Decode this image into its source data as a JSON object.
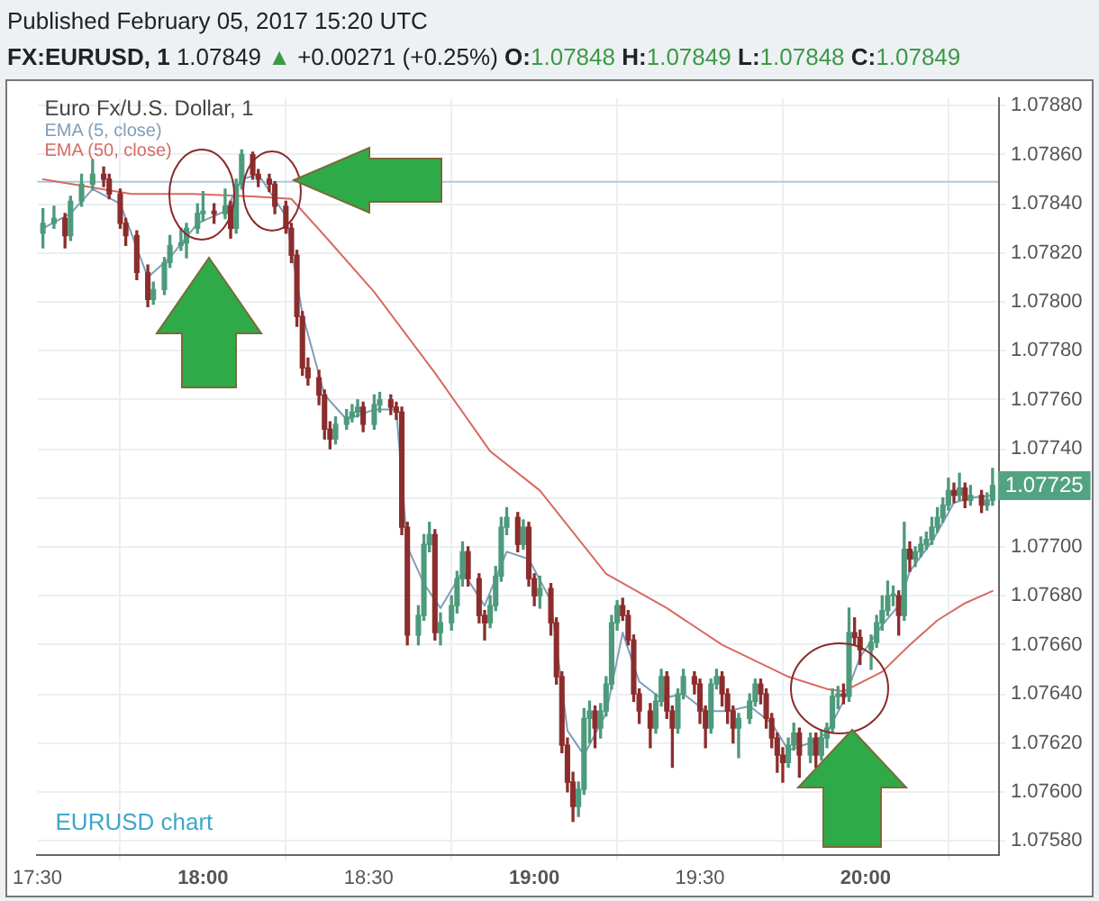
{
  "chart_data": {
    "type": "candlestick",
    "title": "Euro Fx/U.S. Dollar, 1",
    "subtitle": "FX:EURUSD, 1 1.07849 ▲ +0.00271 (+0.25%) O:1.07848 H:1.07849 L:1.07848 C:1.07849",
    "annotations": [
      "Published February 05, 2017 15:20 UTC",
      "EURUSD chart",
      {
        "text": "1.07725",
        "x": 20.3833,
        "y": 1.07725
      }
    ],
    "x": [
      17.5167,
      17.55,
      17.5833,
      17.6,
      17.6333,
      17.6667,
      17.7,
      17.7167,
      17.75,
      17.7667,
      17.8,
      17.8333,
      17.85,
      17.8833,
      17.9,
      17.9333,
      17.95,
      17.9833,
      18,
      18.0333,
      18.0667,
      18.0833,
      18.1,
      18.1167,
      18.15,
      18.1667,
      18.2,
      18.2167,
      18.25,
      18.2667,
      18.2833,
      18.3,
      18.3167,
      18.35,
      18.3667,
      18.3833,
      18.4,
      18.4333,
      18.45,
      18.4667,
      18.4833,
      18.5167,
      18.5333,
      18.5667,
      18.5833,
      18.6,
      18.6167,
      18.65,
      18.6667,
      18.6833,
      18.7,
      18.7167,
      18.75,
      18.7667,
      18.7833,
      18.8,
      18.8333,
      18.85,
      18.8667,
      18.8833,
      18.9,
      18.9167,
      18.95,
      18.9667,
      18.9833,
      19,
      19.0167,
      19.05,
      19.0667,
      19.0833,
      19.1,
      19.1167,
      19.1333,
      19.15,
      19.1667,
      19.1833,
      19.2,
      19.2167,
      19.2333,
      19.25,
      19.2667,
      19.2833,
      19.3,
      19.3167,
      19.35,
      19.3667,
      19.3833,
      19.4,
      19.4167,
      19.4333,
      19.45,
      19.4833,
      19.5,
      19.5167,
      19.5333,
      19.55,
      19.5667,
      19.5833,
      19.6,
      19.6167,
      19.65,
      19.6667,
      19.6833,
      19.7,
      19.7167,
      19.7333,
      19.75,
      19.7667,
      19.7833,
      19.8,
      19.8333,
      19.85,
      19.8667,
      19.8833,
      19.9,
      19.9167,
      19.9333,
      19.95,
      19.9667,
      19.9833,
      20.0167,
      20.0333,
      20.05,
      20.0667,
      20.0833,
      20.1,
      20.1167,
      20.1333,
      20.15,
      20.1667,
      20.1833,
      20.2,
      20.2167,
      20.2333,
      20.25,
      20.2667,
      20.2833,
      20.3,
      20.3167,
      20.35,
      20.3667,
      20.3833
    ],
    "ohlc": [
      [
        1.07828,
        1.07838,
        1.07822,
        1.07832
      ],
      [
        1.07832,
        1.07839,
        1.0783,
        1.07834
      ],
      [
        1.07834,
        1.07836,
        1.07822,
        1.07827
      ],
      [
        1.07827,
        1.07843,
        1.07825,
        1.07841
      ],
      [
        1.07841,
        1.07852,
        1.07839,
        1.07848
      ],
      [
        1.07848,
        1.07858,
        1.07846,
        1.07852
      ],
      [
        1.07852,
        1.07855,
        1.07847,
        1.0785
      ],
      [
        1.0785,
        1.07852,
        1.07842,
        1.07844
      ],
      [
        1.07844,
        1.07846,
        1.0783,
        1.07832
      ],
      [
        1.07832,
        1.07834,
        1.07823,
        1.07827
      ],
      [
        1.07827,
        1.07829,
        1.07809,
        1.07812
      ],
      [
        1.07812,
        1.07815,
        1.07798,
        1.07801
      ],
      [
        1.07801,
        1.07808,
        1.07799,
        1.07805
      ],
      [
        1.07805,
        1.07818,
        1.07803,
        1.07816
      ],
      [
        1.07816,
        1.07827,
        1.07814,
        1.07823
      ],
      [
        1.07823,
        1.0783,
        1.07821,
        1.07824
      ],
      [
        1.07824,
        1.07832,
        1.07818,
        1.0783
      ],
      [
        1.0783,
        1.0784,
        1.07828,
        1.07836
      ],
      [
        1.07836,
        1.07845,
        1.07833,
        1.07837
      ],
      [
        1.07837,
        1.0784,
        1.07832,
        1.07836
      ],
      [
        1.07836,
        1.07846,
        1.07834,
        1.07839
      ],
      [
        1.07839,
        1.07841,
        1.07826,
        1.0783
      ],
      [
        1.0783,
        1.0785,
        1.07828,
        1.07848
      ],
      [
        1.07848,
        1.07862,
        1.07846,
        1.0786
      ],
      [
        1.0786,
        1.07861,
        1.0785,
        1.07852
      ],
      [
        1.07852,
        1.07854,
        1.07847,
        1.0785
      ],
      [
        1.0785,
        1.07852,
        1.07845,
        1.07848
      ],
      [
        1.07848,
        1.07849,
        1.07836,
        1.07839
      ],
      [
        1.07839,
        1.07841,
        1.07828,
        1.0783
      ],
      [
        1.0783,
        1.07832,
        1.07816,
        1.07819
      ],
      [
        1.07819,
        1.07821,
        1.0779,
        1.07794
      ],
      [
        1.07794,
        1.07796,
        1.0777,
        1.07773
      ],
      [
        1.07773,
        1.07777,
        1.07766,
        1.07769
      ],
      [
        1.07769,
        1.07772,
        1.07758,
        1.07762
      ],
      [
        1.07762,
        1.07764,
        1.07744,
        1.07748
      ],
      [
        1.07748,
        1.07751,
        1.0774,
        1.07744
      ],
      [
        1.07744,
        1.07753,
        1.07742,
        1.0775
      ],
      [
        1.0775,
        1.07756,
        1.07748,
        1.07753
      ],
      [
        1.07753,
        1.07758,
        1.07751,
        1.07755
      ],
      [
        1.07755,
        1.0776,
        1.07753,
        1.07757
      ],
      [
        1.07757,
        1.07759,
        1.07747,
        1.0775
      ],
      [
        1.0775,
        1.07762,
        1.07748,
        1.07758
      ],
      [
        1.07758,
        1.07763,
        1.07755,
        1.0776
      ],
      [
        1.0776,
        1.07762,
        1.07754,
        1.07757
      ],
      [
        1.07757,
        1.07759,
        1.07752,
        1.07755
      ],
      [
        1.07755,
        1.07757,
        1.07705,
        1.07708
      ],
      [
        1.07708,
        1.0771,
        1.0766,
        1.07664
      ],
      [
        1.07664,
        1.07676,
        1.0766,
        1.07672
      ],
      [
        1.07672,
        1.07705,
        1.0767,
        1.07701
      ],
      [
        1.07701,
        1.0771,
        1.07698,
        1.07705
      ],
      [
        1.07705,
        1.07707,
        1.07662,
        1.07665
      ],
      [
        1.07665,
        1.07673,
        1.0766,
        1.07669
      ],
      [
        1.07669,
        1.0768,
        1.07666,
        1.07676
      ],
      [
        1.07676,
        1.0769,
        1.07673,
        1.07687
      ],
      [
        1.07687,
        1.07702,
        1.07684,
        1.07698
      ],
      [
        1.07698,
        1.077,
        1.07684,
        1.07687
      ],
      [
        1.07687,
        1.07689,
        1.07669,
        1.07672
      ],
      [
        1.07672,
        1.07674,
        1.07662,
        1.07669
      ],
      [
        1.07669,
        1.0768,
        1.07667,
        1.07676
      ],
      [
        1.07676,
        1.07692,
        1.07674,
        1.07688
      ],
      [
        1.07688,
        1.07712,
        1.07686,
        1.07708
      ],
      [
        1.07708,
        1.07716,
        1.07705,
        1.07712
      ],
      [
        1.07712,
        1.07714,
        1.07698,
        1.07701
      ],
      [
        1.07701,
        1.07711,
        1.07699,
        1.07708
      ],
      [
        1.07708,
        1.0771,
        1.07684,
        1.07687
      ],
      [
        1.07687,
        1.07689,
        1.07676,
        1.0768
      ],
      [
        1.0768,
        1.07688,
        1.07675,
        1.07683
      ],
      [
        1.07683,
        1.07685,
        1.07664,
        1.07669
      ],
      [
        1.07669,
        1.07671,
        1.07644,
        1.07647
      ],
      [
        1.07647,
        1.07649,
        1.07616,
        1.07619
      ],
      [
        1.07619,
        1.07622,
        1.076,
        1.07604
      ],
      [
        1.07604,
        1.07608,
        1.07588,
        1.07594
      ],
      [
        1.07594,
        1.07604,
        1.0759,
        1.07601
      ],
      [
        1.07601,
        1.07634,
        1.07599,
        1.0763
      ],
      [
        1.0763,
        1.07637,
        1.0762,
        1.07633
      ],
      [
        1.07633,
        1.07635,
        1.07618,
        1.07626
      ],
      [
        1.07626,
        1.07636,
        1.07622,
        1.07633
      ],
      [
        1.07633,
        1.07647,
        1.07631,
        1.07644
      ],
      [
        1.07644,
        1.07672,
        1.07642,
        1.07669
      ],
      [
        1.07669,
        1.07678,
        1.07666,
        1.07676
      ],
      [
        1.07676,
        1.07679,
        1.0767,
        1.07672
      ],
      [
        1.07672,
        1.07674,
        1.0766,
        1.07662
      ],
      [
        1.07662,
        1.07664,
        1.07637,
        1.0764
      ],
      [
        1.0764,
        1.07642,
        1.07628,
        1.07633
      ],
      [
        1.07633,
        1.07636,
        1.07618,
        1.07626
      ],
      [
        1.07626,
        1.0764,
        1.07624,
        1.07637
      ],
      [
        1.07637,
        1.0765,
        1.07635,
        1.07647
      ],
      [
        1.07647,
        1.07649,
        1.0763,
        1.07633
      ],
      [
        1.07633,
        1.07635,
        1.0761,
        1.07626
      ],
      [
        1.07626,
        1.07642,
        1.07624,
        1.0764
      ],
      [
        1.0764,
        1.0765,
        1.07638,
        1.07647
      ],
      [
        1.07647,
        1.07649,
        1.0764,
        1.07644
      ],
      [
        1.07644,
        1.07646,
        1.07628,
        1.07633
      ],
      [
        1.07633,
        1.07635,
        1.07618,
        1.07626
      ],
      [
        1.07626,
        1.07646,
        1.07624,
        1.07644
      ],
      [
        1.07644,
        1.0765,
        1.07642,
        1.07647
      ],
      [
        1.07647,
        1.07649,
        1.07635,
        1.0764
      ],
      [
        1.0764,
        1.07642,
        1.07628,
        1.07633
      ],
      [
        1.07633,
        1.07635,
        1.0762,
        1.07626
      ],
      [
        1.07626,
        1.07632,
        1.07614,
        1.0763
      ],
      [
        1.0763,
        1.0764,
        1.07628,
        1.07637
      ],
      [
        1.07637,
        1.07646,
        1.07635,
        1.07644
      ],
      [
        1.07644,
        1.07646,
        1.07636,
        1.0764
      ],
      [
        1.0764,
        1.07642,
        1.07626,
        1.0763
      ],
      [
        1.0763,
        1.07632,
        1.07618,
        1.07622
      ],
      [
        1.07622,
        1.07624,
        1.07608,
        1.07615
      ],
      [
        1.07615,
        1.07618,
        1.07604,
        1.07612
      ],
      [
        1.07612,
        1.07622,
        1.0761,
        1.07619
      ],
      [
        1.07619,
        1.07628,
        1.07617,
        1.07624
      ],
      [
        1.07624,
        1.07626,
        1.07606,
        1.07615
      ],
      [
        1.07615,
        1.07624,
        1.07612,
        1.07622
      ],
      [
        1.07622,
        1.07624,
        1.0761,
        1.07615
      ],
      [
        1.07615,
        1.07625,
        1.07613,
        1.07622
      ],
      [
        1.07622,
        1.07628,
        1.07618,
        1.07626
      ],
      [
        1.07626,
        1.07642,
        1.07624,
        1.07639
      ],
      [
        1.07639,
        1.07643,
        1.07634,
        1.0764
      ],
      [
        1.0764,
        1.07644,
        1.07636,
        1.07639
      ],
      [
        1.07639,
        1.07675,
        1.07637,
        1.07665
      ],
      [
        1.07665,
        1.07671,
        1.0766,
        1.07663
      ],
      [
        1.07663,
        1.07666,
        1.07652,
        1.07658
      ],
      [
        1.07658,
        1.07664,
        1.0765,
        1.07661
      ],
      [
        1.07661,
        1.07672,
        1.07659,
        1.07669
      ],
      [
        1.07669,
        1.0768,
        1.07666,
        1.07674
      ],
      [
        1.07674,
        1.07686,
        1.07672,
        1.0768
      ],
      [
        1.0768,
        1.07684,
        1.07676,
        1.0768
      ],
      [
        1.0768,
        1.07682,
        1.07664,
        1.07672
      ],
      [
        1.07672,
        1.0771,
        1.0767,
        1.07699
      ],
      [
        1.07699,
        1.07702,
        1.0769,
        1.07695
      ],
      [
        1.07695,
        1.077,
        1.07692,
        1.07698
      ],
      [
        1.07698,
        1.07704,
        1.07696,
        1.07701
      ],
      [
        1.07701,
        1.07706,
        1.07699,
        1.07703
      ],
      [
        1.07703,
        1.07712,
        1.07701,
        1.07708
      ],
      [
        1.07708,
        1.07716,
        1.07706,
        1.07712
      ],
      [
        1.07712,
        1.0772,
        1.0771,
        1.07717
      ],
      [
        1.07717,
        1.07728,
        1.07715,
        1.07723
      ],
      [
        1.07723,
        1.07726,
        1.07718,
        1.07721
      ],
      [
        1.07721,
        1.0773,
        1.07719,
        1.07724
      ],
      [
        1.07724,
        1.07726,
        1.07716,
        1.07719
      ],
      [
        1.07719,
        1.07725,
        1.07717,
        1.07721
      ],
      [
        1.07721,
        1.07723,
        1.07714,
        1.07717
      ],
      [
        1.07717,
        1.07722,
        1.07715,
        1.07719
      ],
      [
        1.07719,
        1.07732,
        1.07717,
        1.07725
      ]
    ],
    "colors": [
      "#4e9a7c",
      "#4e9a7c",
      "#8c2d2d",
      "#4e9a7c",
      "#4e9a7c",
      "#4e9a7c",
      "#8c2d2d",
      "#8c2d2d",
      "#8c2d2d",
      "#8c2d2d",
      "#8c2d2d",
      "#8c2d2d",
      "#4e9a7c",
      "#4e9a7c",
      "#4e9a7c",
      "#4e9a7c",
      "#4e9a7c",
      "#4e9a7c",
      "#4e9a7c",
      "#8c2d2d",
      "#4e9a7c",
      "#8c2d2d",
      "#4e9a7c",
      "#4e9a7c",
      "#8c2d2d",
      "#8c2d2d",
      "#8c2d2d",
      "#8c2d2d",
      "#8c2d2d",
      "#8c2d2d",
      "#8c2d2d",
      "#8c2d2d",
      "#8c2d2d",
      "#8c2d2d",
      "#8c2d2d",
      "#8c2d2d",
      "#4e9a7c",
      "#4e9a7c",
      "#4e9a7c",
      "#4e9a7c",
      "#8c2d2d",
      "#4e9a7c",
      "#4e9a7c",
      "#8c2d2d",
      "#8c2d2d",
      "#8c2d2d",
      "#8c2d2d",
      "#4e9a7c",
      "#4e9a7c",
      "#4e9a7c",
      "#8c2d2d",
      "#4e9a7c",
      "#4e9a7c",
      "#4e9a7c",
      "#4e9a7c",
      "#8c2d2d",
      "#8c2d2d",
      "#8c2d2d",
      "#4e9a7c",
      "#4e9a7c",
      "#4e9a7c",
      "#4e9a7c",
      "#8c2d2d",
      "#4e9a7c",
      "#8c2d2d",
      "#8c2d2d",
      "#4e9a7c",
      "#8c2d2d",
      "#8c2d2d",
      "#8c2d2d",
      "#8c2d2d",
      "#8c2d2d",
      "#4e9a7c",
      "#4e9a7c",
      "#4e9a7c",
      "#8c2d2d",
      "#4e9a7c",
      "#4e9a7c",
      "#4e9a7c",
      "#4e9a7c",
      "#8c2d2d",
      "#8c2d2d",
      "#8c2d2d",
      "#8c2d2d",
      "#8c2d2d",
      "#4e9a7c",
      "#4e9a7c",
      "#8c2d2d",
      "#8c2d2d",
      "#4e9a7c",
      "#4e9a7c",
      "#8c2d2d",
      "#8c2d2d",
      "#8c2d2d",
      "#4e9a7c",
      "#4e9a7c",
      "#8c2d2d",
      "#8c2d2d",
      "#8c2d2d",
      "#4e9a7c",
      "#4e9a7c",
      "#4e9a7c",
      "#8c2d2d",
      "#8c2d2d",
      "#8c2d2d",
      "#8c2d2d",
      "#8c2d2d",
      "#4e9a7c",
      "#4e9a7c",
      "#8c2d2d",
      "#4e9a7c",
      "#8c2d2d",
      "#4e9a7c",
      "#4e9a7c",
      "#4e9a7c",
      "#4e9a7c",
      "#8c2d2d",
      "#4e9a7c",
      "#8c2d2d",
      "#8c2d2d",
      "#4e9a7c",
      "#4e9a7c",
      "#4e9a7c",
      "#4e9a7c",
      "#4e9a7c",
      "#8c2d2d",
      "#4e9a7c",
      "#8c2d2d",
      "#4e9a7c",
      "#4e9a7c",
      "#4e9a7c",
      "#4e9a7c",
      "#4e9a7c",
      "#4e9a7c",
      "#4e9a7c",
      "#8c2d2d",
      "#4e9a7c",
      "#8c2d2d",
      "#4e9a7c",
      "#8c2d2d",
      "#4e9a7c",
      "#4e9a7c"
    ],
    "series": [
      {
        "name": "EMA (5, close)",
        "type": "line",
        "color": "#7f9db8",
        "x": [
          17.5167,
          17.6,
          17.6667,
          17.75,
          17.8333,
          17.9,
          17.9833,
          18.0667,
          18.1167,
          18.1667,
          18.25,
          18.3,
          18.3667,
          18.4333,
          18.5167,
          18.5833,
          18.6167,
          18.6667,
          18.7167,
          18.7833,
          18.85,
          18.9167,
          18.9833,
          19.05,
          19.1,
          19.15,
          19.2167,
          19.2667,
          19.3167,
          19.3833,
          19.45,
          19.5167,
          19.5833,
          19.65,
          19.7167,
          19.7667,
          19.8333,
          19.8833,
          19.9333,
          19.9833,
          20.05,
          20.1,
          20.1333,
          20.2,
          20.2667,
          20.3167,
          20.3833
        ],
        "values": [
          1.0783,
          1.07836,
          1.07846,
          1.0784,
          1.0781,
          1.07818,
          1.07832,
          1.07837,
          1.0785,
          1.07852,
          1.07835,
          1.07795,
          1.07762,
          1.07752,
          1.07756,
          1.07756,
          1.077,
          1.07685,
          1.07675,
          1.0769,
          1.07676,
          1.07698,
          1.07695,
          1.07678,
          1.07625,
          1.07615,
          1.07632,
          1.07665,
          1.07645,
          1.07638,
          1.0764,
          1.07633,
          1.07633,
          1.07635,
          1.07628,
          1.07617,
          1.0762,
          1.07624,
          1.07637,
          1.07655,
          1.07668,
          1.07676,
          1.0769,
          1.07702,
          1.07718,
          1.0772,
          1.07721
        ]
      },
      {
        "name": "EMA (50, close)",
        "type": "line",
        "color": "#d86a62",
        "x": [
          17.5167,
          17.7833,
          17.9667,
          18.15,
          18.2667,
          18.3667,
          18.5167,
          18.7,
          18.8667,
          19.0167,
          19.2167,
          19.4,
          19.5667,
          19.7667,
          19.8833,
          19.9333,
          20.05,
          20.1333,
          20.2167,
          20.3,
          20.3833
        ],
        "values": [
          1.0785,
          1.07844,
          1.07844,
          1.07843,
          1.07842,
          1.07827,
          1.07804,
          1.07771,
          1.07739,
          1.07723,
          1.07689,
          1.07675,
          1.0766,
          1.07647,
          1.07642,
          1.07641,
          1.07649,
          1.0766,
          1.0767,
          1.07677,
          1.07682
        ]
      }
    ],
    "ref_lines": [
      {
        "axis": "y",
        "value": 1.07849,
        "color": "#a9c8de"
      }
    ],
    "xlim": [
      17.5,
      20.4
    ],
    "xticks": [
      {
        "value": 17.5,
        "label": "17:30"
      },
      {
        "value": 18,
        "label": "18:00"
      },
      {
        "value": 18.5,
        "label": "18:30"
      },
      {
        "value": 19,
        "label": "19:00"
      },
      {
        "value": 19.5,
        "label": "19:30"
      },
      {
        "value": 20,
        "label": "20:00"
      }
    ],
    "ylim": [
      1.07574,
      1.07883
    ],
    "yticks": [
      {
        "value": 1.0758,
        "label": "1.07580"
      },
      {
        "value": 1.076,
        "label": "1.07600"
      },
      {
        "value": 1.0762,
        "label": "1.07620"
      },
      {
        "value": 1.0764,
        "label": "1.07640"
      },
      {
        "value": 1.0766,
        "label": "1.07660"
      },
      {
        "value": 1.0768,
        "label": "1.07680"
      },
      {
        "value": 1.077,
        "label": "1.07700"
      },
      {
        "value": 1.0772,
        "label": null
      },
      {
        "value": 1.0774,
        "label": "1.07740"
      },
      {
        "value": 1.0776,
        "label": "1.07760"
      },
      {
        "value": 1.0778,
        "label": "1.07780"
      },
      {
        "value": 1.078,
        "label": "1.07800"
      },
      {
        "value": 1.0782,
        "label": "1.07820"
      },
      {
        "value": 1.0784,
        "label": "1.07840"
      },
      {
        "value": 1.0786,
        "label": "1.07860"
      },
      {
        "value": 1.0788,
        "label": "1.07880"
      }
    ],
    "grid": true,
    "legend": "top left"
  }
}
